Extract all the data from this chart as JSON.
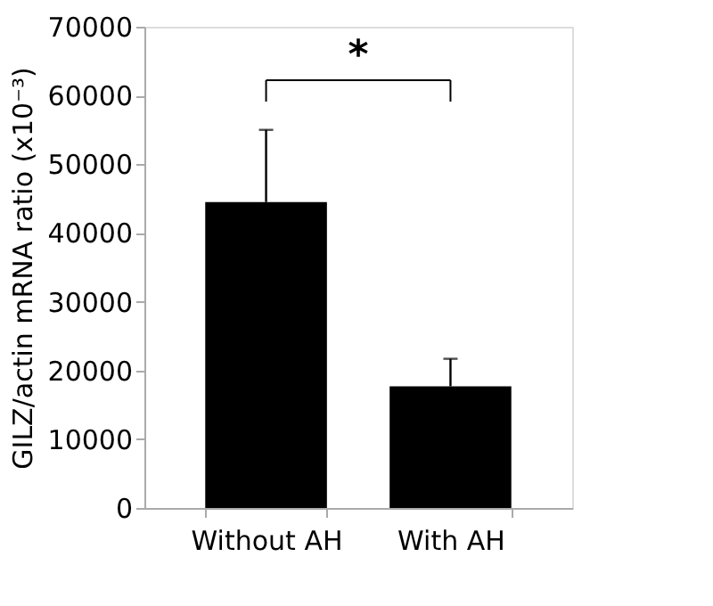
{
  "chart_data": {
    "type": "bar",
    "ylabel": "GILZ/actin mRNA ratio (x10⁻³)",
    "categories": [
      "Without AH",
      "With AH"
    ],
    "values": [
      44500,
      17700
    ],
    "errors": [
      10500,
      4000
    ],
    "color": "#000000",
    "ylim": [
      0,
      70000
    ],
    "yticks": [
      0,
      10000,
      20000,
      30000,
      40000,
      50000,
      60000,
      70000
    ],
    "grid": false,
    "annotations": [
      "*"
    ]
  }
}
